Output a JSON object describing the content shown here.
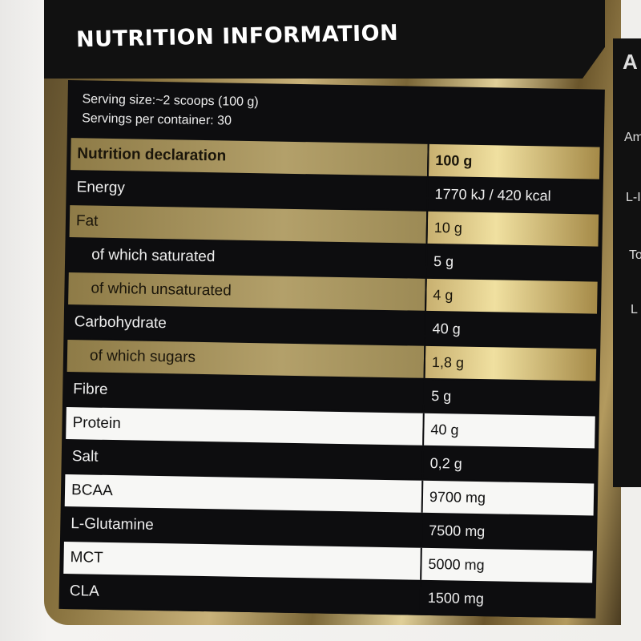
{
  "title": "NUTRITION INFORMATION",
  "serving_size": "Serving size:~2 scoops (100 g)",
  "servings_per_container": "Servings per container: 30",
  "table": {
    "header": {
      "name": "Nutrition declaration",
      "value": "100 g"
    },
    "rows": [
      {
        "name": "Energy",
        "value": "1770 kJ / 420 kcal"
      },
      {
        "name": "Fat",
        "value": "10 g"
      },
      {
        "name": "of which saturated",
        "value": "5 g"
      },
      {
        "name": "of which unsaturated",
        "value": "4 g"
      },
      {
        "name": "Carbohydrate",
        "value": "40 g"
      },
      {
        "name": "of which sugars",
        "value": "1,8 g"
      },
      {
        "name": "Fibre",
        "value": "5 g"
      },
      {
        "name": "Protein",
        "value": "40 g"
      },
      {
        "name": "Salt",
        "value": "0,2 g"
      },
      {
        "name": "BCAA",
        "value": "9700 mg"
      },
      {
        "name": "L-Glutamine",
        "value": "7500 mg"
      },
      {
        "name": "MCT",
        "value": "5000 mg"
      },
      {
        "name": "CLA",
        "value": "1500 mg"
      }
    ]
  },
  "side_panel": {
    "title": "A",
    "lines": [
      "Ami",
      "L-I",
      "To",
      "L"
    ]
  }
}
